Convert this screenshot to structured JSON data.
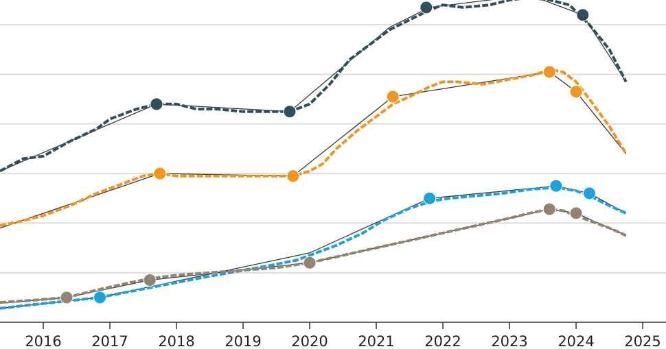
{
  "chart_data": {
    "type": "line",
    "title": "",
    "xlabel": "",
    "ylabel": "",
    "x_ticks": [
      "2016",
      "2017",
      "2018",
      "2019",
      "2020",
      "2021",
      "2022",
      "2023",
      "2024",
      "2025"
    ],
    "xlim": [
      2015.35,
      2025.35
    ],
    "ylim": [
      0,
      6.5
    ],
    "y_gridlines": [
      1,
      2,
      3,
      4,
      5,
      6
    ],
    "grid": true,
    "legend": "none",
    "series": [
      {
        "color": "#2f4f5c",
        "x": [
          2015.35,
          2015.7,
          2016.0,
          2016.4,
          2016.8,
          2017.0,
          2017.4,
          2017.7,
          2018.0,
          2018.3,
          2018.6,
          2019.0,
          2019.4,
          2019.7,
          2020.0,
          2020.3,
          2020.6,
          2020.9,
          2021.2,
          2021.5,
          2021.8,
          2022.0,
          2022.3,
          2022.7,
          2023.0,
          2023.3,
          2023.6,
          2023.9,
          2024.2,
          2024.5,
          2024.75
        ],
        "y": [
          3.05,
          3.3,
          3.35,
          3.65,
          3.9,
          4.1,
          4.3,
          4.4,
          4.4,
          4.3,
          4.3,
          4.25,
          4.25,
          4.25,
          4.4,
          4.8,
          5.3,
          5.6,
          5.9,
          6.1,
          6.3,
          6.4,
          6.35,
          6.4,
          6.5,
          6.55,
          6.5,
          6.4,
          6.0,
          5.5,
          4.85
        ],
        "trend": {
          "x": [
            2015.35,
            2017.7,
            2019.7,
            2021.2,
            2021.8,
            2023.3,
            2024.1,
            2024.75
          ],
          "y": [
            3.05,
            4.4,
            4.25,
            5.95,
            6.35,
            6.6,
            6.2,
            4.85
          ]
        },
        "markers": {
          "x": [
            2017.7,
            2019.7,
            2021.75,
            2024.1
          ],
          "y": [
            4.4,
            4.25,
            6.35,
            6.2
          ]
        }
      },
      {
        "color": "#f0961e",
        "x": [
          2015.35,
          2015.7,
          2016.0,
          2016.4,
          2016.8,
          2017.2,
          2017.5,
          2017.75,
          2018.0,
          2018.5,
          2019.0,
          2019.5,
          2019.75,
          2020.0,
          2020.2,
          2020.4,
          2020.7,
          2021.0,
          2021.25,
          2021.5,
          2021.8,
          2022.0,
          2022.2,
          2022.6,
          2023.0,
          2023.4,
          2023.6,
          2023.8,
          2024.0,
          2024.2,
          2024.5,
          2024.75
        ],
        "y": [
          1.95,
          2.05,
          2.15,
          2.35,
          2.6,
          2.8,
          2.95,
          3.0,
          2.95,
          2.95,
          2.95,
          2.95,
          2.95,
          3.05,
          3.2,
          3.5,
          3.85,
          4.15,
          4.4,
          4.55,
          4.75,
          4.85,
          4.85,
          4.8,
          4.9,
          5.0,
          5.1,
          5.05,
          4.85,
          4.5,
          3.95,
          3.4
        ],
        "trend": {
          "x": [
            2015.35,
            2017.75,
            2019.75,
            2021.25,
            2023.6,
            2024.0,
            2024.75
          ],
          "y": [
            1.9,
            3.0,
            2.95,
            4.55,
            5.05,
            4.65,
            3.4
          ]
        },
        "markers": {
          "x": [
            2017.75,
            2019.75,
            2021.25,
            2023.6,
            2024.0
          ],
          "y": [
            3.0,
            2.95,
            4.55,
            5.05,
            4.65
          ]
        }
      },
      {
        "color": "#1ba1dc",
        "x": [
          2015.35,
          2015.8,
          2016.3,
          2016.85,
          2017.3,
          2017.8,
          2018.3,
          2018.8,
          2019.3,
          2019.8,
          2020.0,
          2020.4,
          2020.8,
          2021.1,
          2021.5,
          2021.85,
          2022.1,
          2022.5,
          2022.9,
          2023.3,
          2023.7,
          2024.0,
          2024.2,
          2024.5,
          2024.75
        ],
        "y": [
          0.28,
          0.35,
          0.42,
          0.5,
          0.62,
          0.75,
          0.88,
          1.0,
          1.12,
          1.25,
          1.35,
          1.55,
          1.8,
          2.05,
          2.3,
          2.45,
          2.5,
          2.55,
          2.6,
          2.68,
          2.72,
          2.65,
          2.55,
          2.35,
          2.2
        ],
        "trend": {
          "x": [
            2015.35,
            2016.85,
            2020.0,
            2021.8,
            2023.7,
            2024.2,
            2024.75
          ],
          "y": [
            0.28,
            0.5,
            1.4,
            2.5,
            2.75,
            2.6,
            2.2
          ]
        },
        "markers": {
          "x": [
            2016.85,
            2021.8,
            2023.7,
            2024.2
          ],
          "y": [
            0.5,
            2.5,
            2.75,
            2.6
          ]
        }
      },
      {
        "color": "#918472",
        "x": [
          2015.35,
          2015.9,
          2016.35,
          2016.9,
          2017.3,
          2017.6,
          2018.0,
          2018.5,
          2019.0,
          2019.5,
          2020.0,
          2020.5,
          2021.0,
          2021.5,
          2022.0,
          2022.5,
          2023.0,
          2023.3,
          2023.6,
          2023.8,
          2024.0,
          2024.3,
          2024.5,
          2024.75
        ],
        "y": [
          0.4,
          0.45,
          0.5,
          0.68,
          0.8,
          0.88,
          0.95,
          1.0,
          1.05,
          1.1,
          1.2,
          1.35,
          1.5,
          1.65,
          1.8,
          1.95,
          2.1,
          2.2,
          2.28,
          2.25,
          2.15,
          2.0,
          1.9,
          1.75
        ],
        "trend": {
          "x": [
            2015.35,
            2016.35,
            2017.6,
            2020.0,
            2023.6,
            2024.0,
            2024.75
          ],
          "y": [
            0.38,
            0.5,
            0.85,
            1.2,
            2.28,
            2.2,
            1.75
          ]
        },
        "markers": {
          "x": [
            2016.35,
            2017.6,
            2020.0,
            2023.6,
            2024.0
          ],
          "y": [
            0.5,
            0.85,
            1.2,
            2.28,
            2.2
          ]
        }
      }
    ]
  }
}
